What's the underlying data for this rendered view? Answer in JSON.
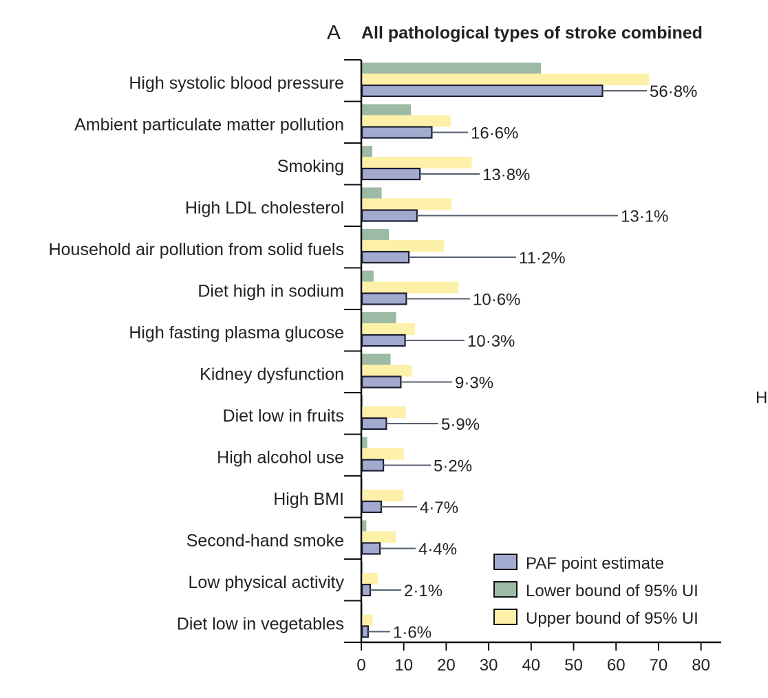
{
  "chart_data": {
    "type": "bar",
    "orientation": "horizontal",
    "panel_letter": "A",
    "title": "All pathological types of stroke combined",
    "xlim": [
      0,
      80
    ],
    "xticks": [
      0,
      10,
      20,
      30,
      40,
      50,
      60,
      70,
      80
    ],
    "grid": false,
    "legend_position": "bottom-right",
    "categories": [
      "High systolic blood pressure",
      "Ambient particulate matter pollution",
      "Smoking",
      "High LDL cholesterol",
      "Household air pollution from solid fuels",
      "Diet high in sodium",
      "High fasting plasma glucose",
      "Kidney dysfunction",
      "Diet low in fruits",
      "High alcohol use",
      "High BMI",
      "Second-hand smoke",
      "Low physical activity",
      "Diet low in vegetables"
    ],
    "series": [
      {
        "name": "Lower bound of 95% UI",
        "color": "#9dbba4",
        "values": [
          42.3,
          11.7,
          2.6,
          4.8,
          6.5,
          2.9,
          8.2,
          6.9,
          0.4,
          1.4,
          0.3,
          1.2,
          0.4,
          0.3
        ]
      },
      {
        "name": "Upper bound of 95% UI",
        "color": "#fdf0a8",
        "values": [
          67.8,
          21.0,
          26.0,
          21.3,
          19.5,
          22.9,
          12.6,
          11.9,
          10.5,
          10.0,
          9.9,
          8.2,
          3.9,
          2.7
        ]
      },
      {
        "name": "PAF point estimate",
        "color": "#a3aacf",
        "values": [
          56.8,
          16.6,
          13.8,
          13.1,
          11.2,
          10.6,
          10.3,
          9.3,
          5.9,
          5.2,
          4.7,
          4.4,
          2.1,
          1.6
        ]
      }
    ],
    "value_labels": [
      "56·8%",
      "16·6%",
      "13·8%",
      "13·1%",
      "11·2%",
      "10·6%",
      "10·3%",
      "9·3%",
      "5·9%",
      "5·2%",
      "4·7%",
      "4·4%",
      "2·1%",
      "1·6%"
    ],
    "legend": [
      "PAF point estimate",
      "Lower bound of 95% UI",
      "Upper bound of 95% UI"
    ],
    "side_text": "H"
  }
}
